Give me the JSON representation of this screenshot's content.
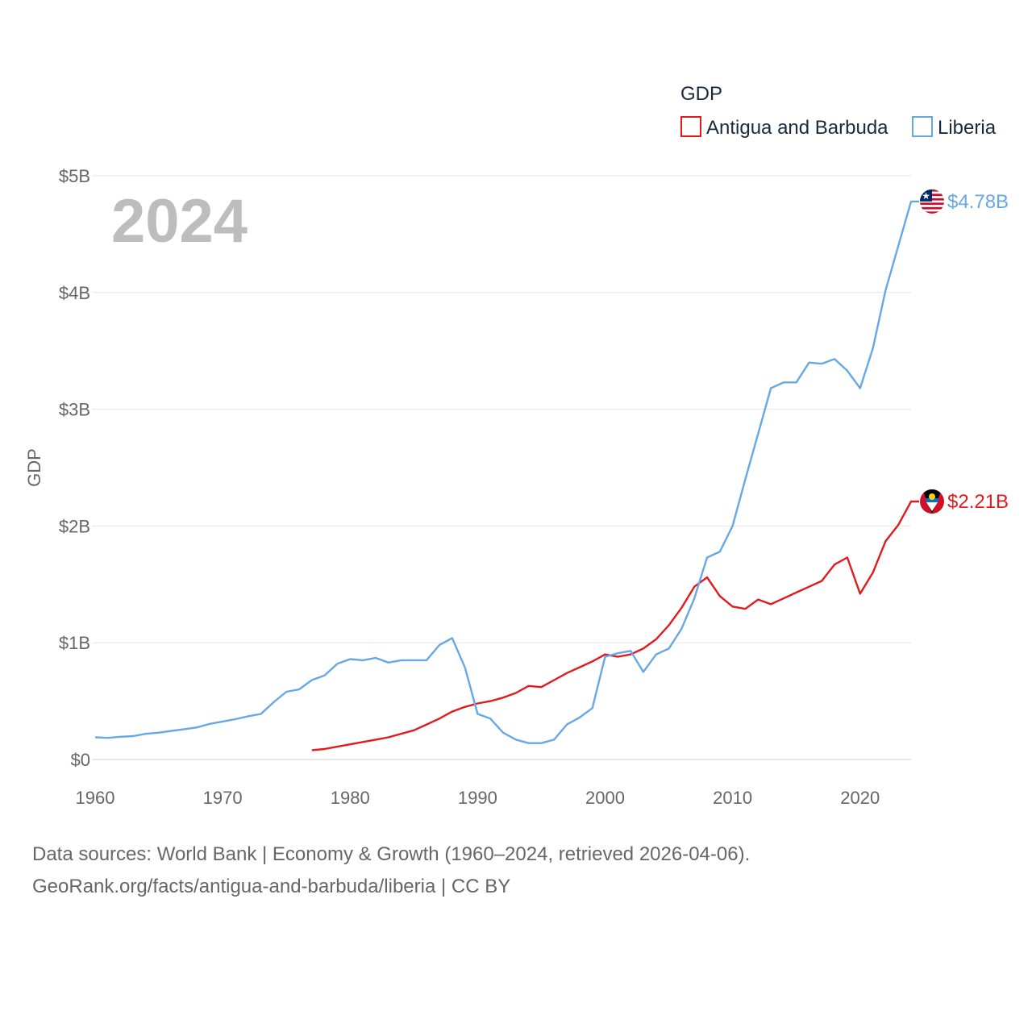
{
  "chart_data": {
    "type": "line",
    "year_label": "2024",
    "ylabel": "GDP",
    "legend_title": "GDP",
    "xlim": [
      1960,
      2024
    ],
    "ylim": [
      0,
      5
    ],
    "x_ticks": [
      1960,
      1970,
      1980,
      1990,
      2000,
      2010,
      2020
    ],
    "x_tick_labels": [
      "1960",
      "1970",
      "1980",
      "1990",
      "2000",
      "2010",
      "2020"
    ],
    "y_ticks": [
      0,
      1,
      2,
      3,
      4,
      5
    ],
    "y_tick_labels": [
      "$0",
      "$1B",
      "$2B",
      "$3B",
      "$4B",
      "$5B"
    ],
    "y_units": "billions USD",
    "series": [
      {
        "name": "Antigua and Barbuda",
        "color": "#e31a1c",
        "end_label": "$2.21B",
        "flag": "antigua-and-barbuda",
        "x": [
          1977,
          1978,
          1979,
          1980,
          1981,
          1982,
          1983,
          1984,
          1985,
          1986,
          1987,
          1988,
          1989,
          1990,
          1991,
          1992,
          1993,
          1994,
          1995,
          1996,
          1997,
          1998,
          1999,
          2000,
          2001,
          2002,
          2003,
          2004,
          2005,
          2006,
          2007,
          2008,
          2009,
          2010,
          2011,
          2012,
          2013,
          2014,
          2015,
          2016,
          2017,
          2018,
          2019,
          2020,
          2021,
          2022,
          2023,
          2024
        ],
        "values": [
          0.08,
          0.09,
          0.11,
          0.13,
          0.15,
          0.17,
          0.19,
          0.22,
          0.25,
          0.3,
          0.35,
          0.41,
          0.45,
          0.48,
          0.5,
          0.53,
          0.57,
          0.63,
          0.62,
          0.68,
          0.74,
          0.79,
          0.84,
          0.9,
          0.88,
          0.9,
          0.95,
          1.03,
          1.15,
          1.3,
          1.48,
          1.56,
          1.4,
          1.31,
          1.29,
          1.37,
          1.33,
          1.38,
          1.43,
          1.48,
          1.53,
          1.67,
          1.73,
          1.42,
          1.6,
          1.87,
          2.01,
          2.21
        ]
      },
      {
        "name": "Liberia",
        "color": "#66a8e6",
        "end_label": "$4.78B",
        "flag": "liberia",
        "x": [
          1960,
          1961,
          1962,
          1963,
          1964,
          1965,
          1966,
          1967,
          1968,
          1969,
          1970,
          1971,
          1972,
          1973,
          1974,
          1975,
          1976,
          1977,
          1978,
          1979,
          1980,
          1981,
          1982,
          1983,
          1984,
          1985,
          1986,
          1987,
          1988,
          1989,
          1990,
          1991,
          1992,
          1993,
          1994,
          1995,
          1996,
          1997,
          1998,
          1999,
          2000,
          2001,
          2002,
          2003,
          2004,
          2005,
          2006,
          2007,
          2008,
          2009,
          2010,
          2011,
          2012,
          2013,
          2014,
          2015,
          2016,
          2017,
          2018,
          2019,
          2020,
          2021,
          2022,
          2023,
          2024
        ],
        "values": [
          0.19,
          0.185,
          0.195,
          0.2,
          0.22,
          0.23,
          0.245,
          0.26,
          0.275,
          0.305,
          0.325,
          0.345,
          0.37,
          0.39,
          0.49,
          0.58,
          0.6,
          0.68,
          0.72,
          0.82,
          0.86,
          0.85,
          0.87,
          0.83,
          0.85,
          0.85,
          0.85,
          0.98,
          1.04,
          0.79,
          0.39,
          0.35,
          0.23,
          0.17,
          0.14,
          0.14,
          0.17,
          0.3,
          0.36,
          0.44,
          0.88,
          0.91,
          0.93,
          0.75,
          0.9,
          0.95,
          1.12,
          1.38,
          1.73,
          1.78,
          2.0,
          2.4,
          2.79,
          3.18,
          3.23,
          3.23,
          3.4,
          3.39,
          3.43,
          3.33,
          3.18,
          3.52,
          4.02,
          4.4,
          4.78
        ]
      }
    ]
  },
  "footer": {
    "line1": "Data sources: World Bank | Economy & Growth (1960–2024, retrieved 2026-04-06).",
    "line2": "GeoRank.org/facts/antigua-and-barbuda/liberia | CC BY"
  }
}
